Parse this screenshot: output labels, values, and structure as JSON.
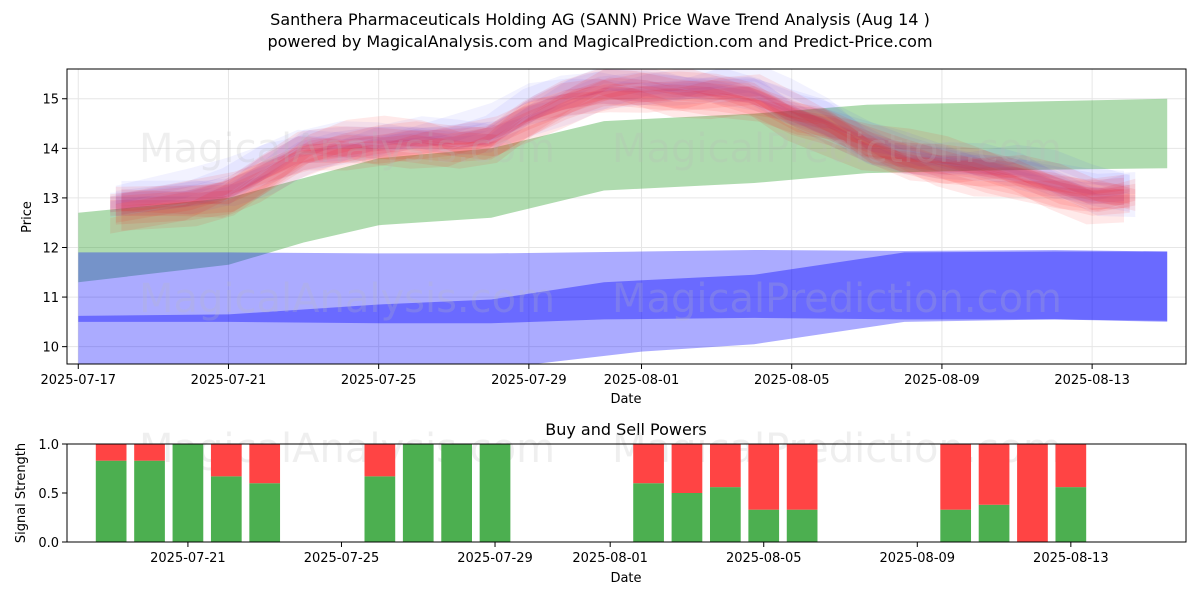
{
  "figure": {
    "title_line1": "Santhera Pharmaceuticals Holding AG (SANN) Price Wave Trend Analysis (Aug 14 )",
    "title_line2": "powered by MagicalAnalysis.com and MagicalPrediction.com and Predict-Price.com",
    "watermark_left": "MagicalAnalysis.com",
    "watermark_right": "MagicalPrediction.com"
  },
  "colors": {
    "green_band": "#2ca02c",
    "blue_band": "#0000ff",
    "red_wave": "#ff0000",
    "blue_wave": "#4d4dff",
    "buy": "#4caf50",
    "sell": "#ff4444"
  },
  "chart_data": [
    {
      "type": "area",
      "title": "",
      "xlabel": "Date",
      "ylabel": "Price",
      "xlim": [
        "2025-07-16.7",
        "2025-08-15.5"
      ],
      "ylim": [
        9.65,
        15.6
      ],
      "yticks": [
        10,
        11,
        12,
        13,
        14,
        15
      ],
      "xticks": [
        "2025-07-17",
        "2025-07-21",
        "2025-07-25",
        "2025-07-29",
        "2025-08-01",
        "2025-08-05",
        "2025-08-09",
        "2025-08-13"
      ],
      "bands": [
        {
          "name": "green trend band",
          "color_key": "green_band",
          "opacity": 0.38,
          "x": [
            "2025-07-17",
            "2025-07-21",
            "2025-07-23",
            "2025-07-25",
            "2025-07-28",
            "2025-07-31",
            "2025-08-04",
            "2025-08-07",
            "2025-08-10",
            "2025-08-15"
          ],
          "upper": [
            12.7,
            13.0,
            13.4,
            13.8,
            14.0,
            14.55,
            14.7,
            14.88,
            14.92,
            15.0
          ],
          "lower": [
            11.3,
            11.65,
            12.1,
            12.45,
            12.6,
            13.15,
            13.3,
            13.5,
            13.55,
            13.6
          ]
        },
        {
          "name": "blue wide band",
          "color_key": "blue_band",
          "opacity": 0.33,
          "x": [
            "2025-07-17",
            "2025-07-21",
            "2025-07-25",
            "2025-07-28",
            "2025-08-01",
            "2025-08-04",
            "2025-08-08",
            "2025-08-12",
            "2025-08-15"
          ],
          "upper": [
            11.9,
            11.9,
            11.88,
            11.88,
            11.92,
            11.95,
            11.93,
            11.95,
            11.92
          ],
          "lower": [
            9.5,
            9.5,
            9.5,
            9.55,
            9.9,
            10.05,
            10.5,
            10.55,
            10.5
          ]
        },
        {
          "name": "blue core band",
          "color_key": "blue_band",
          "opacity": 0.38,
          "x": [
            "2025-07-17",
            "2025-07-21",
            "2025-07-25",
            "2025-07-28",
            "2025-07-31",
            "2025-08-04",
            "2025-08-08",
            "2025-08-12",
            "2025-08-15"
          ],
          "upper": [
            10.62,
            10.65,
            10.85,
            10.95,
            11.3,
            11.45,
            11.9,
            11.92,
            11.92
          ],
          "lower": [
            10.5,
            10.5,
            10.47,
            10.47,
            10.55,
            10.58,
            10.55,
            10.55,
            10.52
          ]
        }
      ],
      "wave_center": {
        "x": [
          "2025-07-18",
          "2025-07-20",
          "2025-07-21",
          "2025-07-22",
          "2025-07-23",
          "2025-07-24",
          "2025-07-25",
          "2025-07-26",
          "2025-07-27",
          "2025-07-28",
          "2025-07-29",
          "2025-07-30",
          "2025-07-31",
          "2025-08-01",
          "2025-08-02",
          "2025-08-03",
          "2025-08-04",
          "2025-08-05",
          "2025-08-06",
          "2025-08-07",
          "2025-08-08",
          "2025-08-09",
          "2025-08-10",
          "2025-08-11",
          "2025-08-12",
          "2025-08-13",
          "2025-08-14"
        ],
        "values": [
          12.85,
          13.0,
          13.15,
          13.55,
          13.95,
          14.05,
          14.1,
          14.15,
          14.15,
          14.25,
          14.7,
          15.0,
          15.2,
          15.2,
          15.15,
          15.15,
          15.1,
          14.75,
          14.5,
          14.1,
          13.85,
          13.7,
          13.6,
          13.5,
          13.3,
          13.1,
          13.1
        ]
      },
      "wave_series": [
        {
          "color_key": "blue_wave",
          "count": 8
        },
        {
          "color_key": "red_wave",
          "count": 10
        }
      ]
    },
    {
      "type": "bar",
      "title": "Buy and Sell Powers",
      "xlabel": "Date",
      "ylabel": "Signal Strength",
      "xlim": [
        "2025-07-17.85",
        "2025-08-16.0"
      ],
      "ylim": [
        0,
        1
      ],
      "yticks": [
        0.0,
        0.5,
        1.0
      ],
      "xticks": [
        "2025-07-21",
        "2025-07-25",
        "2025-07-29",
        "2025-08-01",
        "2025-08-05",
        "2025-08-09",
        "2025-08-13"
      ],
      "categories": [
        "2025-07-19",
        "2025-07-20",
        "2025-07-21",
        "2025-07-22",
        "2025-07-23",
        "2025-07-26",
        "2025-07-27",
        "2025-07-28",
        "2025-07-29",
        "2025-08-02",
        "2025-08-03",
        "2025-08-04",
        "2025-08-05",
        "2025-08-06",
        "2025-08-10",
        "2025-08-11",
        "2025-08-12",
        "2025-08-13"
      ],
      "series": [
        {
          "name": "Buy",
          "color_key": "buy",
          "values": [
            0.83,
            0.83,
            1.0,
            0.67,
            0.6,
            0.67,
            1.0,
            1.0,
            1.0,
            0.6,
            0.5,
            0.56,
            0.33,
            0.33,
            0.33,
            0.38,
            0.0,
            0.56
          ]
        },
        {
          "name": "Sell",
          "color_key": "sell",
          "values": [
            0.17,
            0.17,
            0.0,
            0.33,
            0.4,
            0.33,
            0.0,
            0.0,
            0.0,
            0.4,
            0.5,
            0.44,
            0.67,
            0.67,
            0.67,
            0.62,
            1.0,
            0.44
          ]
        }
      ]
    }
  ]
}
